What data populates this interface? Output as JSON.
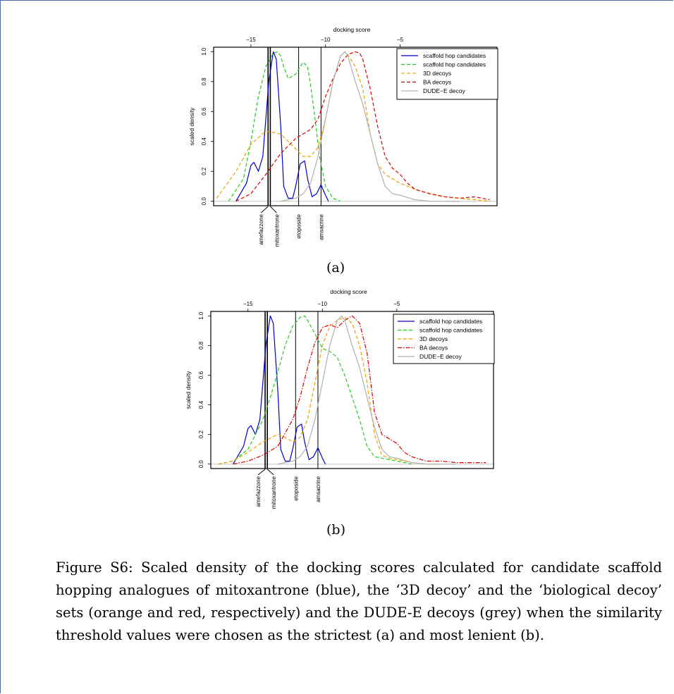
{
  "figure": {
    "caption": "Figure S6: Scaled density of the docking scores calculated for candidate scaffold hopping analogues of mitoxantrone (blue), the ‘3D decoy’ and the ‘biological decoy’ sets (orange and red, respectively) and the DUDE-E decoys (grey) when the similarity threshold values were chosen as the strictest (a) and most lenient (b).",
    "panel_a_label": "(a)",
    "panel_b_label": "(b)"
  },
  "colors": {
    "scaffold_blue": "#0000cc",
    "scaffold_green": "#22cc22",
    "decoy_3d_orange": "#f0a000",
    "decoy_ba_red": "#dd0000",
    "dude_grey": "#b0b0b0"
  },
  "chart_data": [
    {
      "type": "line",
      "panel": "(a)",
      "xlabel": "docking score",
      "ylabel": "scaled density",
      "x_axis_position": "top",
      "xlim": [
        -17.5,
        1.5
      ],
      "ylim": [
        -0.03,
        1.03
      ],
      "x_ticks": [
        -15,
        -10,
        -5
      ],
      "x_tick_labels": [
        "−15",
        "−10",
        "−5"
      ],
      "y_ticks": [
        0.0,
        0.2,
        0.4,
        0.6,
        0.8,
        1.0
      ],
      "y_tick_labels": [
        "0.0",
        "0.2",
        "0.4",
        "0.6",
        "0.8",
        "1.0"
      ],
      "legend_position": "top-right",
      "series": [
        {
          "name": "scaffold hop candidates",
          "color": "#0000cc",
          "style": "solid",
          "x": [
            -16.0,
            -15.3,
            -15.0,
            -14.8,
            -14.5,
            -14.2,
            -13.8,
            -13.5,
            -13.3,
            -13.0,
            -12.8,
            -12.5,
            -12.2,
            -12.0,
            -11.7,
            -11.4,
            -11.2,
            -10.9,
            -10.6,
            -10.3,
            -10.0,
            -9.8
          ],
          "y": [
            0.0,
            0.12,
            0.24,
            0.26,
            0.2,
            0.3,
            0.8,
            1.0,
            0.95,
            0.5,
            0.1,
            0.02,
            0.02,
            0.1,
            0.25,
            0.27,
            0.15,
            0.03,
            0.05,
            0.11,
            0.04,
            0.0
          ]
        },
        {
          "name": "scaffold hop candidates",
          "color": "#22cc22",
          "style": "dashed",
          "x": [
            -16.5,
            -15.5,
            -15.0,
            -14.5,
            -14.0,
            -13.5,
            -13.2,
            -13.0,
            -12.8,
            -12.5,
            -12.0,
            -11.5,
            -11.2,
            -11.0,
            -10.7,
            -10.4,
            -10.0,
            -9.5,
            -9.0
          ],
          "y": [
            0.0,
            0.15,
            0.4,
            0.7,
            0.9,
            0.99,
            1.0,
            0.97,
            0.9,
            0.82,
            0.85,
            0.93,
            0.9,
            0.78,
            0.55,
            0.3,
            0.1,
            0.02,
            0.0
          ]
        },
        {
          "name": "3D decoys",
          "color": "#f0a000",
          "style": "dashed",
          "x": [
            -17.3,
            -16.0,
            -15.0,
            -14.0,
            -13.0,
            -12.0,
            -11.5,
            -11.0,
            -10.5,
            -10.0,
            -9.5,
            -9.0,
            -8.7,
            -8.5,
            -8.0,
            -7.5,
            -7.0,
            -6.5,
            -6.0,
            -5.5,
            -5.0,
            -4.0,
            -3.0,
            -2.0,
            -1.0,
            0.0,
            1.0
          ],
          "y": [
            0.02,
            0.2,
            0.38,
            0.47,
            0.45,
            0.35,
            0.3,
            0.3,
            0.36,
            0.55,
            0.8,
            0.97,
            1.0,
            0.98,
            0.9,
            0.75,
            0.45,
            0.25,
            0.18,
            0.15,
            0.12,
            0.08,
            0.05,
            0.03,
            0.02,
            0.01,
            0.0
          ]
        },
        {
          "name": "BA decoys",
          "color": "#dd0000",
          "style": "dashed",
          "x": [
            -16.0,
            -15.0,
            -14.0,
            -13.0,
            -12.0,
            -11.5,
            -11.0,
            -10.5,
            -10.0,
            -9.5,
            -9.0,
            -8.5,
            -8.0,
            -7.7,
            -7.5,
            -7.0,
            -6.5,
            -6.0,
            -5.5,
            -5.0,
            -4.5,
            -4.0,
            -3.0,
            -2.0,
            -1.0,
            0.0,
            1.0
          ],
          "y": [
            0.0,
            0.05,
            0.18,
            0.32,
            0.42,
            0.45,
            0.48,
            0.55,
            0.7,
            0.82,
            0.92,
            0.98,
            1.0,
            0.99,
            0.95,
            0.75,
            0.5,
            0.3,
            0.22,
            0.18,
            0.12,
            0.08,
            0.05,
            0.03,
            0.02,
            0.03,
            0.01
          ]
        },
        {
          "name": "DUDE−E decoy",
          "color": "#b0b0b0",
          "style": "solid",
          "x": [
            -13.0,
            -12.0,
            -11.5,
            -11.0,
            -10.5,
            -10.0,
            -9.5,
            -9.0,
            -8.7,
            -8.5,
            -8.0,
            -7.5,
            -7.0,
            -6.5,
            -6.0,
            -5.5,
            -5.0,
            -4.0,
            -3.0,
            -2.0,
            -1.0
          ],
          "y": [
            0.0,
            0.02,
            0.05,
            0.12,
            0.3,
            0.55,
            0.8,
            0.97,
            1.0,
            0.97,
            0.8,
            0.65,
            0.45,
            0.25,
            0.1,
            0.05,
            0.04,
            0.01,
            0.0,
            0.0,
            0.0
          ]
        }
      ],
      "reference_lines": [
        {
          "label": "amefazzone",
          "x": -13.85
        },
        {
          "label": "mitoxantrone",
          "x": -13.7
        },
        {
          "label": "etoposide",
          "x": -11.8
        },
        {
          "label": "amsacrine",
          "x": -10.3
        }
      ]
    },
    {
      "type": "line",
      "panel": "(b)",
      "xlabel": "docking score",
      "ylabel": "scaled density",
      "x_axis_position": "top",
      "xlim": [
        -17.5,
        1.5
      ],
      "ylim": [
        -0.03,
        1.03
      ],
      "x_ticks": [
        -15,
        -10,
        -5
      ],
      "x_tick_labels": [
        "−15",
        "−10",
        "−5"
      ],
      "y_ticks": [
        0.0,
        0.2,
        0.4,
        0.6,
        0.8,
        1.0
      ],
      "y_tick_labels": [
        "0.0",
        "0.2",
        "0.4",
        "0.6",
        "0.8",
        "1.0"
      ],
      "legend_position": "top-right",
      "series": [
        {
          "name": "scaffold hop candidates",
          "color": "#0000cc",
          "style": "solid",
          "x": [
            -16.0,
            -15.3,
            -15.0,
            -14.8,
            -14.5,
            -14.2,
            -13.8,
            -13.5,
            -13.3,
            -13.0,
            -12.8,
            -12.5,
            -12.2,
            -12.0,
            -11.7,
            -11.4,
            -11.2,
            -10.9,
            -10.6,
            -10.3,
            -10.0,
            -9.8
          ],
          "y": [
            0.0,
            0.12,
            0.24,
            0.26,
            0.2,
            0.3,
            0.8,
            1.0,
            0.95,
            0.5,
            0.1,
            0.02,
            0.02,
            0.1,
            0.25,
            0.27,
            0.15,
            0.03,
            0.05,
            0.11,
            0.04,
            0.0
          ]
        },
        {
          "name": "scaffold hop candidates",
          "color": "#22cc22",
          "style": "dashed",
          "x": [
            -17.0,
            -16.0,
            -15.0,
            -14.0,
            -13.5,
            -13.0,
            -12.5,
            -12.0,
            -11.5,
            -11.2,
            -11.0,
            -10.5,
            -10.0,
            -9.5,
            -9.0,
            -8.5,
            -8.0,
            -7.5,
            -7.0,
            -6.5,
            -6.0,
            -5.5,
            -5.0,
            -4.0
          ],
          "y": [
            0.0,
            0.02,
            0.1,
            0.3,
            0.45,
            0.62,
            0.8,
            0.93,
            0.99,
            1.0,
            0.97,
            0.88,
            0.78,
            0.76,
            0.72,
            0.6,
            0.45,
            0.3,
            0.12,
            0.05,
            0.04,
            0.03,
            0.02,
            0.0
          ]
        },
        {
          "name": "3D decoys",
          "color": "#f0a000",
          "style": "dashed",
          "x": [
            -17.0,
            -16.0,
            -15.0,
            -14.0,
            -13.0,
            -12.5,
            -12.0,
            -11.5,
            -11.0,
            -10.5,
            -10.0,
            -9.5,
            -9.0,
            -8.5,
            -8.0,
            -7.5,
            -7.0,
            -6.5,
            -6.0,
            -5.5,
            -5.0,
            -4.5,
            -4.0,
            -3.0,
            -2.0
          ],
          "y": [
            0.0,
            0.02,
            0.08,
            0.15,
            0.2,
            0.18,
            0.15,
            0.18,
            0.3,
            0.55,
            0.8,
            0.93,
            0.97,
            0.99,
            0.95,
            0.8,
            0.55,
            0.2,
            0.06,
            0.04,
            0.03,
            0.02,
            0.01,
            0.0,
            0.0
          ]
        },
        {
          "name": "BA decoys",
          "color": "#dd0000",
          "style": "dashdot",
          "x": [
            -16.0,
            -15.0,
            -14.0,
            -13.0,
            -12.0,
            -11.5,
            -11.0,
            -10.5,
            -10.0,
            -9.5,
            -9.0,
            -8.5,
            -8.0,
            -7.5,
            -7.0,
            -6.5,
            -6.0,
            -5.5,
            -5.0,
            -4.5,
            -4.0,
            -3.0,
            -2.0,
            -1.0,
            0.0,
            1.0
          ],
          "y": [
            0.0,
            0.02,
            0.06,
            0.12,
            0.3,
            0.45,
            0.65,
            0.82,
            0.92,
            0.94,
            0.92,
            0.97,
            1.0,
            0.95,
            0.75,
            0.35,
            0.2,
            0.17,
            0.14,
            0.08,
            0.05,
            0.02,
            0.02,
            0.01,
            0.01,
            0.01
          ]
        },
        {
          "name": "DUDE−E decoy",
          "color": "#b0b0b0",
          "style": "solid",
          "x": [
            -13.0,
            -12.0,
            -11.5,
            -11.0,
            -10.5,
            -10.0,
            -9.5,
            -9.0,
            -8.7,
            -8.5,
            -8.0,
            -7.5,
            -7.0,
            -6.5,
            -6.0,
            -5.5,
            -5.0,
            -4.0,
            -3.0,
            -2.0,
            -1.0
          ],
          "y": [
            0.0,
            0.02,
            0.05,
            0.12,
            0.3,
            0.55,
            0.8,
            0.97,
            1.0,
            0.97,
            0.8,
            0.65,
            0.45,
            0.25,
            0.1,
            0.05,
            0.04,
            0.01,
            0.0,
            0.0,
            0.0
          ]
        }
      ],
      "reference_lines": [
        {
          "label": "amefazzone",
          "x": -13.85
        },
        {
          "label": "mitoxantrone",
          "x": -13.7
        },
        {
          "label": "etoposide",
          "x": -11.8
        },
        {
          "label": "amsacrine",
          "x": -10.3
        }
      ]
    }
  ]
}
